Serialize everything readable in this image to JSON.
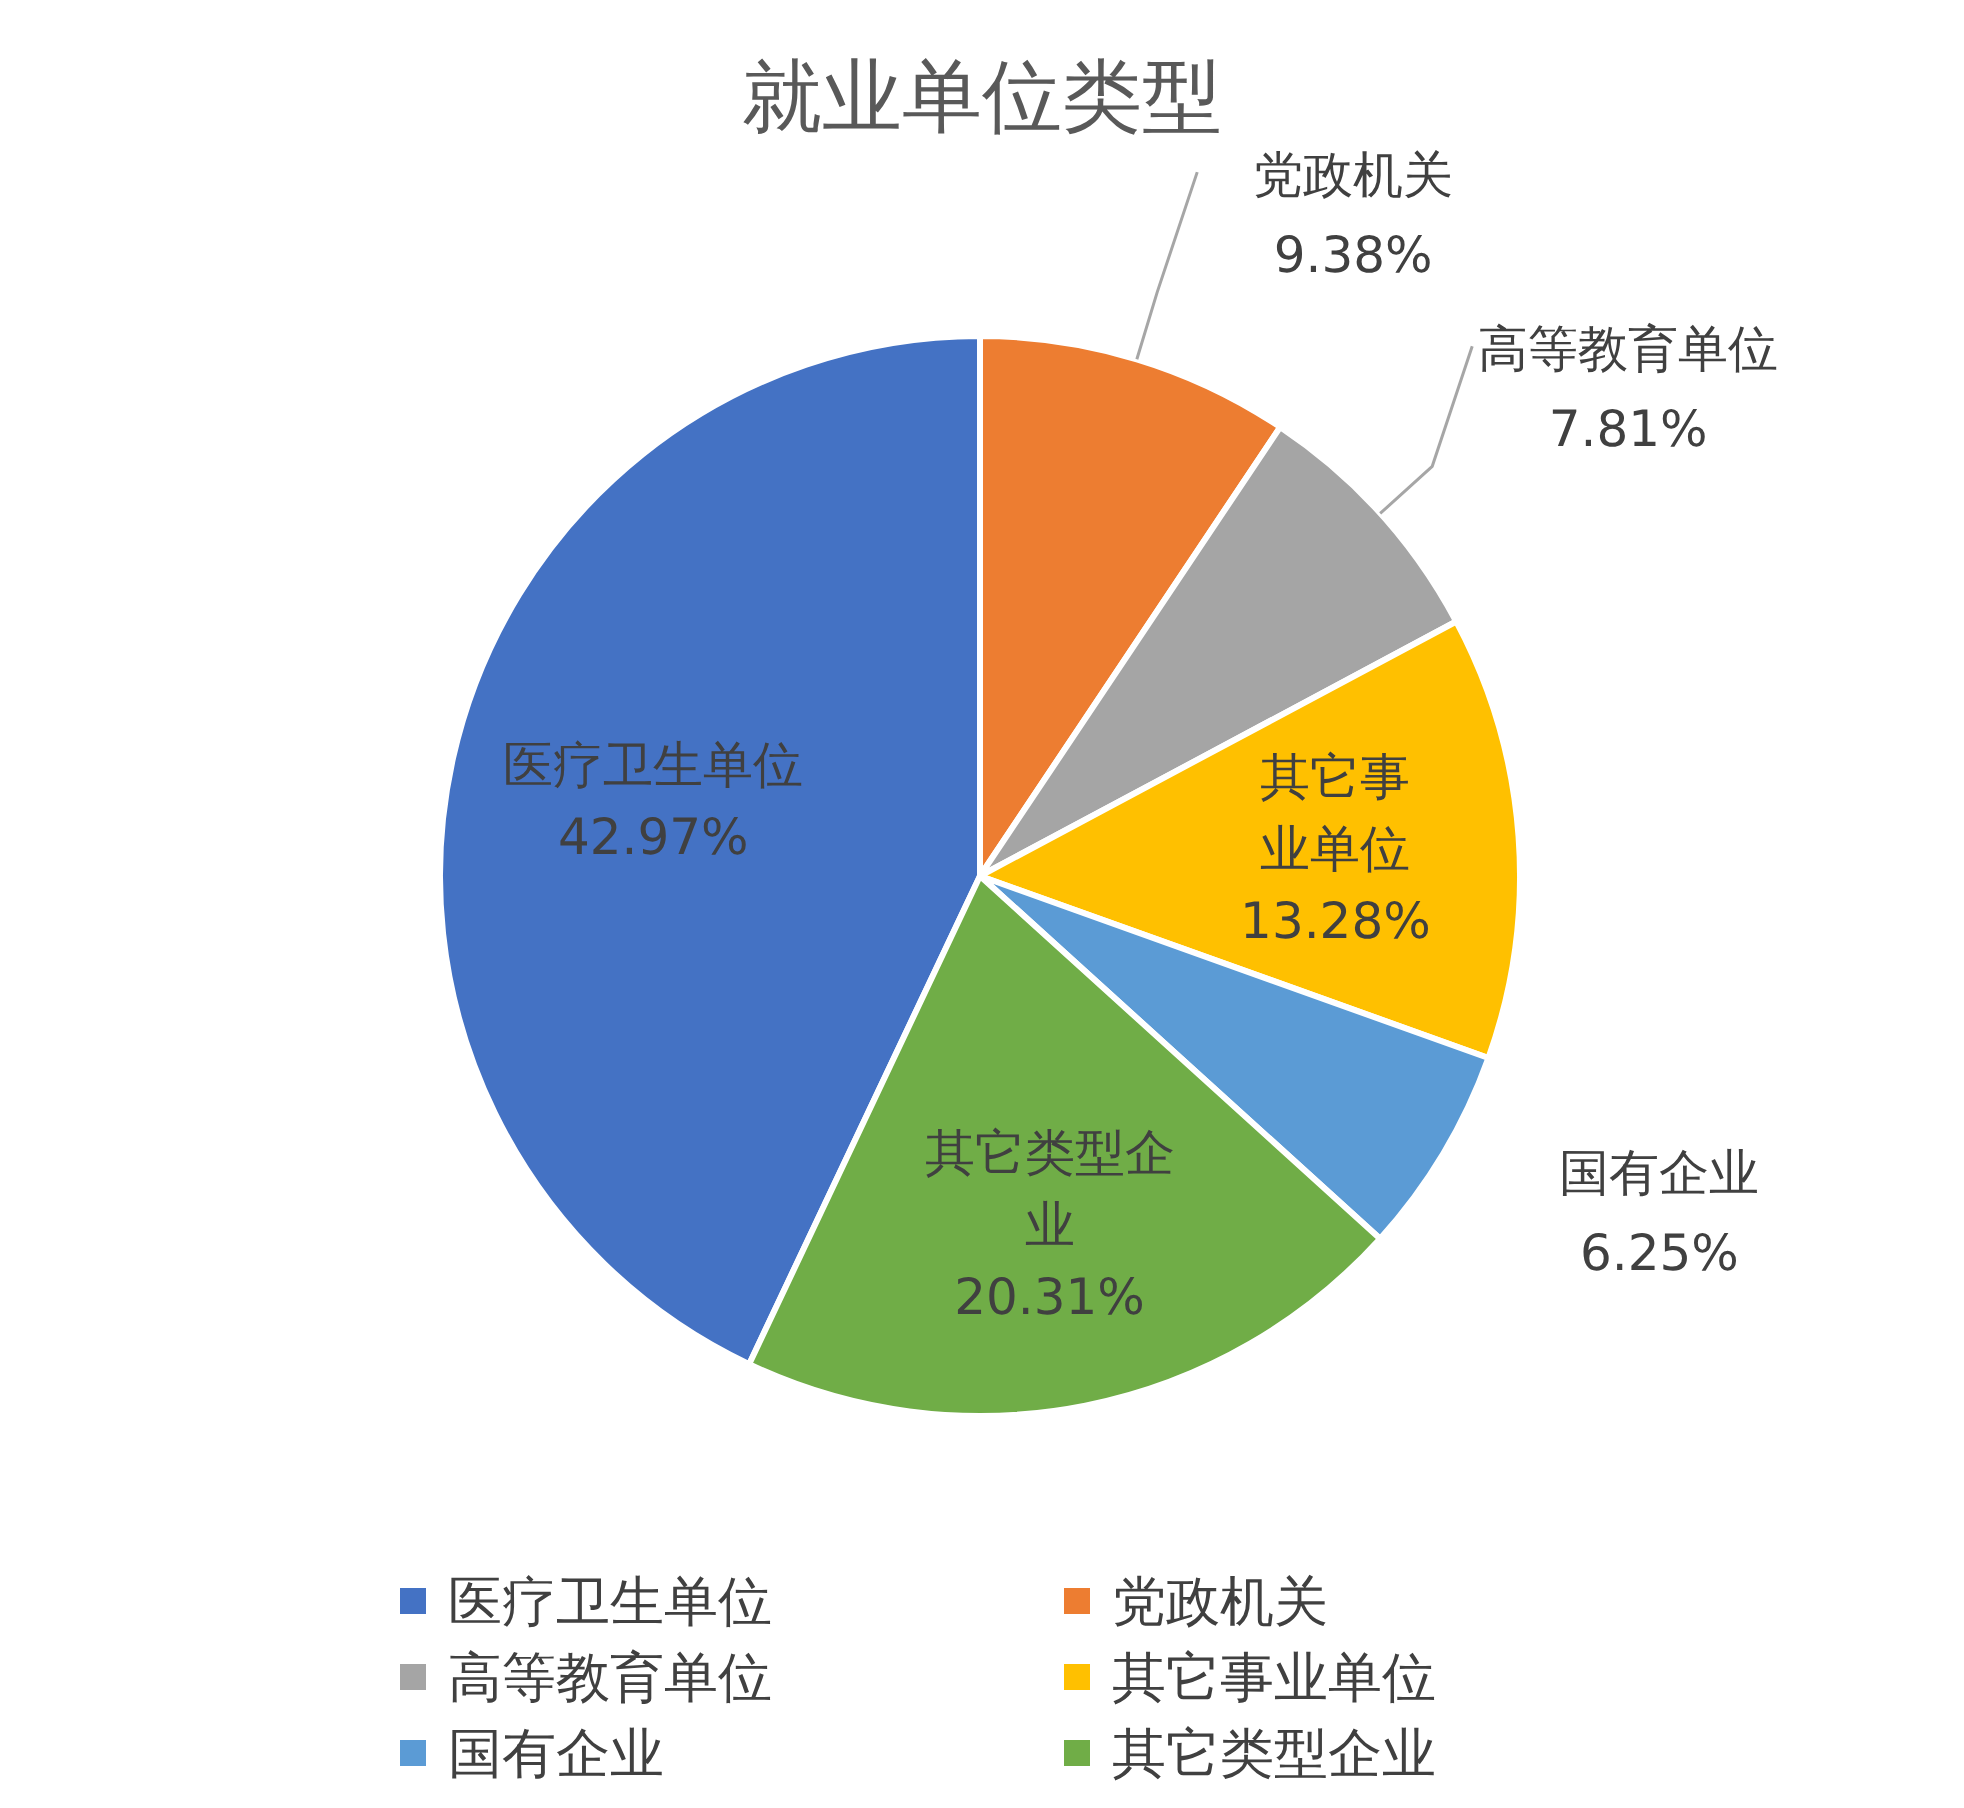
{
  "chart_data": {
    "type": "pie",
    "title": "就业单位类型",
    "categories": [
      "医疗卫生单位",
      "党政机关",
      "高等教育单位",
      "其它事业单位",
      "国有企业",
      "其它类型企业"
    ],
    "values": [
      42.97,
      9.38,
      7.81,
      13.28,
      6.25,
      20.31
    ],
    "colors": [
      "#4472c4",
      "#ed7d31",
      "#a5a5a5",
      "#ffc000",
      "#5b9bd5",
      "#70ad47"
    ],
    "value_labels": [
      "42.97%",
      "9.38%",
      "7.81%",
      "13.28%",
      "6.25%",
      "20.31%"
    ],
    "legend": "bottom"
  }
}
